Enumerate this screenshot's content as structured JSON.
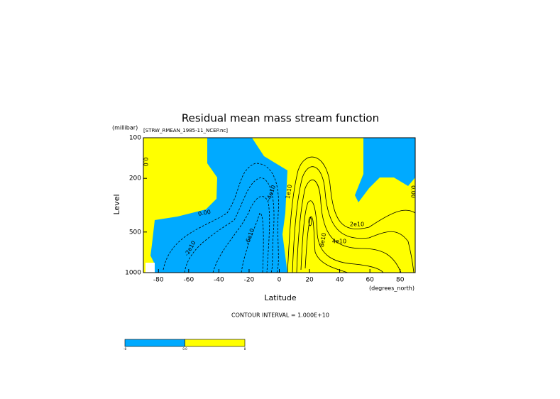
{
  "chart_data": {
    "type": "contour",
    "title": "Residual mean mass stream function",
    "subtitle": "[STRW_RMEAN_1985-11_NCEP.nc]",
    "x_label": "Latitude",
    "x_unit": "(degrees_north)",
    "y_label": "Level",
    "y_unit": "(millibar)",
    "xlim": [
      -90,
      90
    ],
    "xticks": [
      -80,
      -60,
      -40,
      -20,
      0,
      20,
      40,
      60,
      80
    ],
    "ylim": [
      100,
      1000
    ],
    "yticks": [
      100,
      200,
      500,
      1000
    ],
    "log_y": true,
    "y_inverted": true,
    "contour_note": "CONTOUR INTERVAL = 1.000E+10",
    "contour_labels": [
      "0.00",
      "-2e10",
      "-6e10",
      "-4e10",
      "1e10",
      "2e10",
      "4e10",
      "8e10",
      "0.00",
      "0.0"
    ],
    "colorbar": {
      "colors": [
        "#00aaff",
        "#ffff00"
      ],
      "labels": [
        "-8",
        "0.0",
        "8"
      ]
    }
  }
}
